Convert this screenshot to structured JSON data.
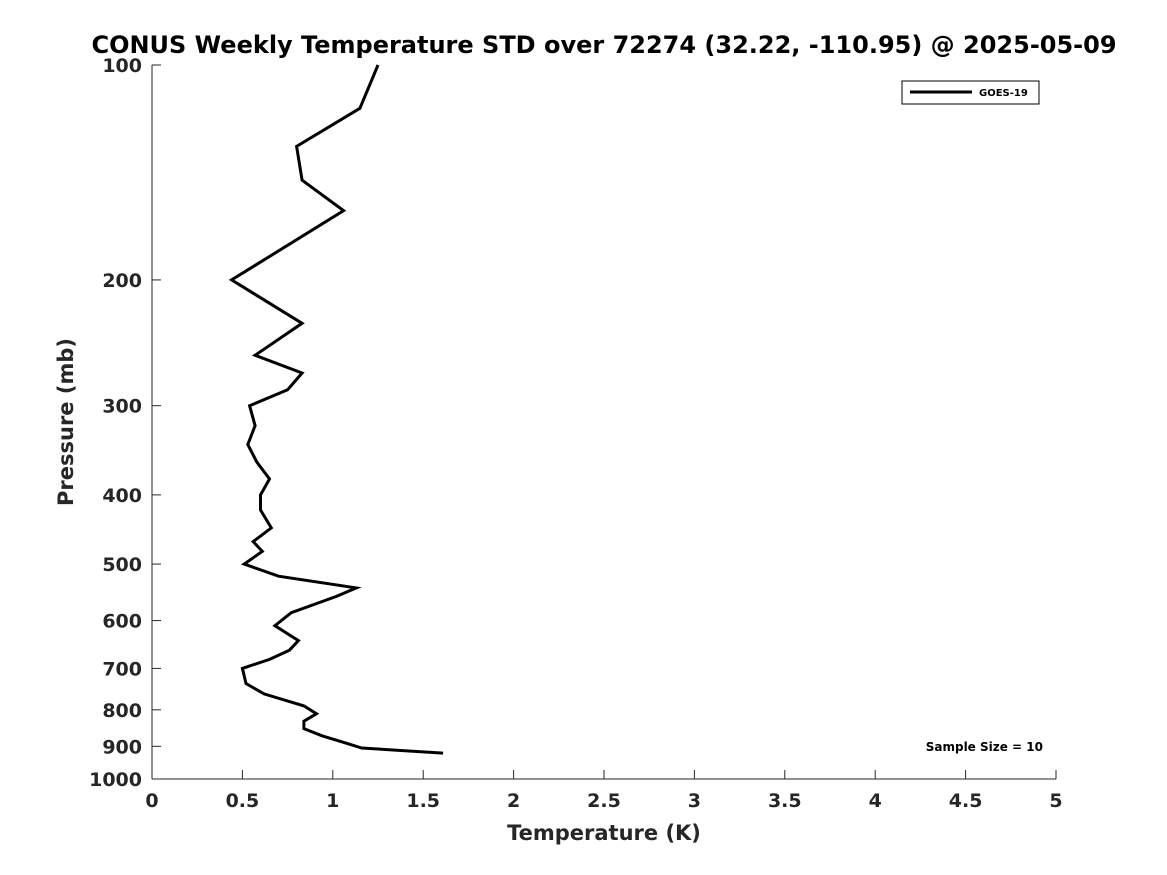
{
  "chart_data": {
    "type": "line",
    "title": "CONUS Weekly Temperature STD over 72274 (32.22, -110.95) @ 2025-05-09",
    "xlabel": "Temperature (K)",
    "ylabel": "Pressure (mb)",
    "xlim": [
      0,
      5
    ],
    "ylim": [
      1000,
      100
    ],
    "yscale": "log",
    "y_reversed": true,
    "x_ticks": [
      "0",
      "0.5",
      "1",
      "1.5",
      "2",
      "2.5",
      "3",
      "3.5",
      "4",
      "4.5",
      "5"
    ],
    "y_ticks": [
      "100",
      "200",
      "300",
      "400",
      "500",
      "600",
      "700",
      "800",
      "900",
      "1000"
    ],
    "grid": false,
    "legend": {
      "position": "top-right",
      "entries": [
        "GOES-19"
      ]
    },
    "annotation": "Sample Size = 10",
    "series": [
      {
        "name": "GOES-19",
        "color": "#000000",
        "points": [
          [
            1.25,
            100
          ],
          [
            1.15,
            115
          ],
          [
            0.8,
            130
          ],
          [
            0.83,
            145
          ],
          [
            1.06,
            160
          ],
          [
            0.44,
            200
          ],
          [
            0.83,
            230
          ],
          [
            0.57,
            255
          ],
          [
            0.83,
            270
          ],
          [
            0.75,
            285
          ],
          [
            0.54,
            300
          ],
          [
            0.57,
            320
          ],
          [
            0.53,
            340
          ],
          [
            0.58,
            360
          ],
          [
            0.65,
            380
          ],
          [
            0.6,
            400
          ],
          [
            0.6,
            420
          ],
          [
            0.66,
            445
          ],
          [
            0.56,
            465
          ],
          [
            0.61,
            480
          ],
          [
            0.51,
            500
          ],
          [
            0.7,
            520
          ],
          [
            1.13,
            540
          ],
          [
            1.02,
            555
          ],
          [
            0.77,
            585
          ],
          [
            0.68,
            610
          ],
          [
            0.81,
            640
          ],
          [
            0.76,
            660
          ],
          [
            0.65,
            680
          ],
          [
            0.5,
            700
          ],
          [
            0.52,
            735
          ],
          [
            0.62,
            760
          ],
          [
            0.84,
            790
          ],
          [
            0.91,
            810
          ],
          [
            0.84,
            830
          ],
          [
            0.84,
            850
          ],
          [
            0.94,
            870
          ],
          [
            1.07,
            890
          ],
          [
            1.16,
            905
          ],
          [
            1.61,
            920
          ]
        ]
      }
    ]
  }
}
